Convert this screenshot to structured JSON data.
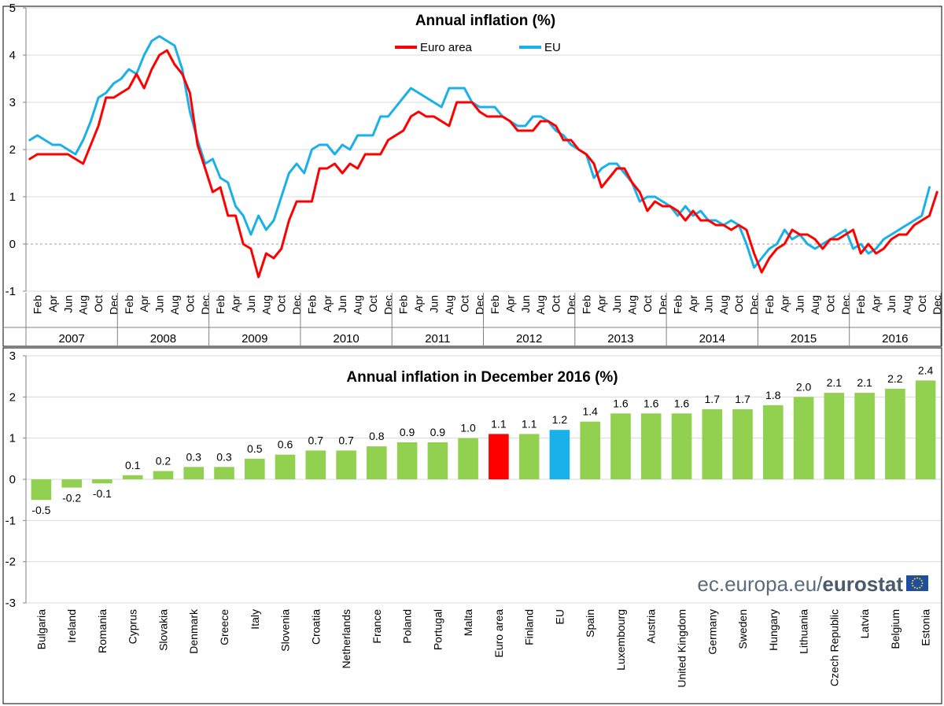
{
  "chart_data": [
    {
      "type": "line",
      "title": "Annual inflation (%)",
      "xlabel": "",
      "ylabel": "",
      "ylim": [
        -1,
        5
      ],
      "yticks": [
        "5",
        "4",
        "3",
        "2",
        "1",
        "0",
        "-1"
      ],
      "month_labels": [
        "Feb",
        "Apr",
        "Jun",
        "Aug",
        "Oct",
        "Dec"
      ],
      "years": [
        "2007",
        "2008",
        "2009",
        "2010",
        "2011",
        "2012",
        "2013",
        "2014",
        "2015",
        "2016"
      ],
      "legend": "top-center",
      "x_start": "Jan 2007",
      "series": [
        {
          "name": "Euro area",
          "color": "#ff0000",
          "values": [
            1.8,
            1.9,
            1.9,
            1.9,
            1.9,
            1.9,
            1.8,
            1.7,
            2.1,
            2.5,
            3.1,
            3.1,
            3.2,
            3.3,
            3.6,
            3.3,
            3.7,
            4.0,
            4.1,
            3.8,
            3.6,
            3.2,
            2.1,
            1.6,
            1.1,
            1.2,
            0.6,
            0.6,
            0.0,
            -0.1,
            -0.7,
            -0.2,
            -0.3,
            -0.1,
            0.5,
            0.9,
            0.9,
            0.9,
            1.6,
            1.6,
            1.7,
            1.5,
            1.7,
            1.6,
            1.9,
            1.9,
            1.9,
            2.2,
            2.3,
            2.4,
            2.7,
            2.8,
            2.7,
            2.7,
            2.6,
            2.5,
            3.0,
            3.0,
            3.0,
            2.8,
            2.7,
            2.7,
            2.7,
            2.6,
            2.4,
            2.4,
            2.4,
            2.6,
            2.6,
            2.5,
            2.2,
            2.2,
            2.0,
            1.9,
            1.7,
            1.2,
            1.4,
            1.6,
            1.6,
            1.3,
            1.1,
            0.7,
            0.9,
            0.8,
            0.8,
            0.7,
            0.5,
            0.7,
            0.5,
            0.5,
            0.4,
            0.4,
            0.3,
            0.4,
            0.3,
            -0.2,
            -0.6,
            -0.3,
            -0.1,
            0.0,
            0.3,
            0.2,
            0.2,
            0.1,
            -0.1,
            0.1,
            0.1,
            0.2,
            0.3,
            -0.2,
            0.0,
            -0.2,
            -0.1,
            0.1,
            0.2,
            0.2,
            0.4,
            0.5,
            0.6,
            1.1
          ]
        },
        {
          "name": "EU",
          "color": "#1ab0e8",
          "values": [
            2.2,
            2.3,
            2.2,
            2.1,
            2.1,
            2.0,
            1.9,
            2.2,
            2.6,
            3.1,
            3.2,
            3.4,
            3.5,
            3.7,
            3.6,
            4.0,
            4.3,
            4.4,
            4.3,
            4.2,
            3.7,
            2.8,
            2.2,
            1.7,
            1.8,
            1.4,
            1.3,
            0.8,
            0.6,
            0.2,
            0.6,
            0.3,
            0.5,
            1.0,
            1.5,
            1.7,
            1.5,
            2.0,
            2.1,
            2.1,
            1.9,
            2.1,
            2.0,
            2.3,
            2.3,
            2.3,
            2.7,
            2.7,
            2.9,
            3.1,
            3.3,
            3.2,
            3.1,
            3.0,
            2.9,
            3.3,
            3.3,
            3.3,
            3.0,
            2.9,
            2.9,
            2.9,
            2.7,
            2.6,
            2.5,
            2.5,
            2.7,
            2.7,
            2.6,
            2.4,
            2.3,
            2.1,
            2.0,
            1.9,
            1.4,
            1.6,
            1.7,
            1.7,
            1.5,
            1.3,
            0.9,
            1.0,
            1.0,
            0.9,
            0.8,
            0.6,
            0.8,
            0.6,
            0.7,
            0.5,
            0.5,
            0.4,
            0.5,
            0.4,
            0.0,
            -0.5,
            -0.3,
            -0.1,
            0.0,
            0.3,
            0.1,
            0.2,
            0.0,
            -0.1,
            0.0,
            0.1,
            0.2,
            0.3,
            -0.1,
            0.0,
            -0.2,
            -0.1,
            0.1,
            0.2,
            0.3,
            0.4,
            0.5,
            0.6,
            1.2
          ]
        }
      ]
    },
    {
      "type": "bar",
      "title": "Annual inflation in December 2016 (%)",
      "xlabel": "",
      "ylabel": "",
      "ylim": [
        -3,
        3
      ],
      "yticks": [
        "3",
        "2",
        "1",
        "0",
        "-1",
        "-2",
        "-3"
      ],
      "categories": [
        "Bulgaria",
        "Ireland",
        "Romania",
        "Cyprus",
        "Slovakia",
        "Denmark",
        "Greece",
        "Italy",
        "Slovenia",
        "Croatia",
        "Netherlands",
        "France",
        "Poland",
        "Portugal",
        "Malta",
        "Euro area",
        "Finland",
        "EU",
        "Spain",
        "Luxembourg",
        "Austria",
        "United Kingdom",
        "Germany",
        "Sweden",
        "Hungary",
        "Lithuania",
        "Czech Republic",
        "Latvia",
        "Belgium",
        "Estonia"
      ],
      "values": [
        -0.5,
        -0.2,
        -0.1,
        0.1,
        0.2,
        0.3,
        0.3,
        0.5,
        0.6,
        0.7,
        0.7,
        0.8,
        0.9,
        0.9,
        1.0,
        1.1,
        1.1,
        1.2,
        1.4,
        1.6,
        1.6,
        1.6,
        1.7,
        1.7,
        1.8,
        2.0,
        2.1,
        2.1,
        2.2,
        2.4
      ],
      "value_labels": [
        "-0.5",
        "-0.2",
        "-0.1",
        "0.1",
        "0.2",
        "0.3",
        "0.3",
        "0.5",
        "0.6",
        "0.7",
        "0.7",
        "0.8",
        "0.9",
        "0.9",
        "1.0",
        "1.1",
        "1.1",
        "1.2",
        "1.4",
        "1.6",
        "1.6",
        "1.6",
        "1.7",
        "1.7",
        "1.8",
        "2.0",
        "2.1",
        "2.1",
        "2.2",
        "2.4"
      ],
      "colors": {
        "default": "#92d050",
        "Euro area": "#ff0000",
        "EU": "#1ab0e8"
      }
    }
  ],
  "branding": {
    "prefix": "ec.europa.eu/",
    "name": "eurostat",
    "logo_icon": "eu-flag-icon"
  }
}
